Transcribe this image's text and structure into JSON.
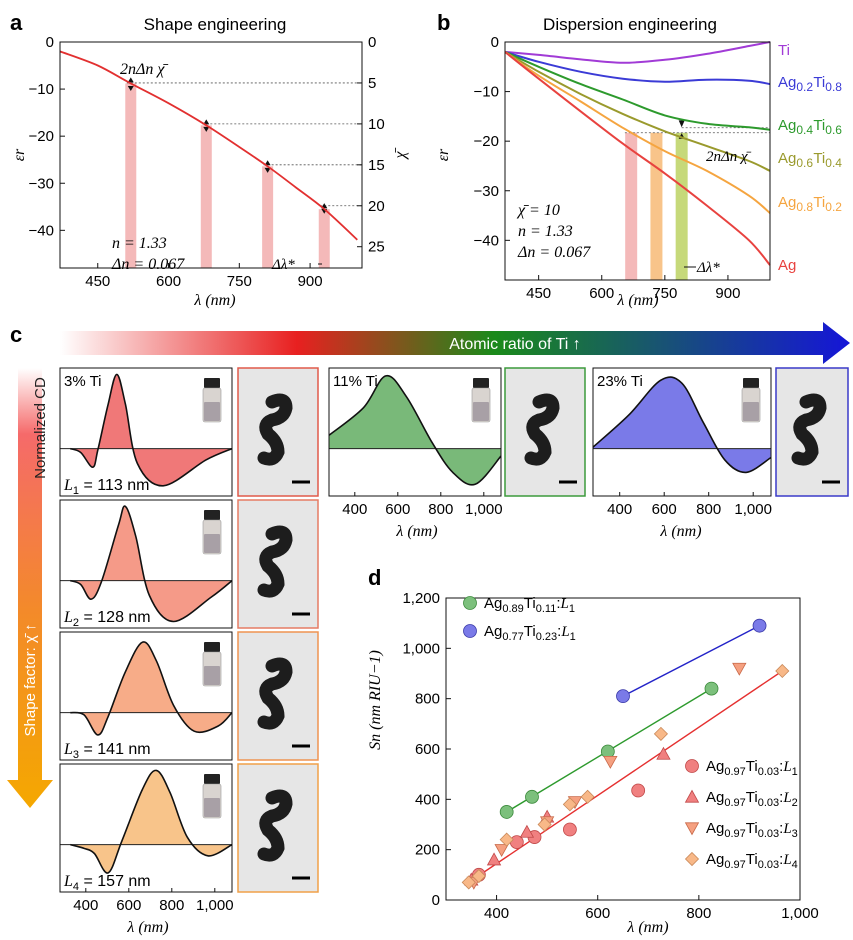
{
  "panel_letters": [
    "a",
    "b",
    "c",
    "d"
  ],
  "chart_data": [
    {
      "id": "a",
      "type": "line",
      "title": "Shape engineering",
      "xlabel": "λ (nm)",
      "ylabel": "εr",
      "y2label": "χ̄",
      "xlim": [
        370,
        1010
      ],
      "ylim": [
        -48,
        0
      ],
      "y2lim": [
        0,
        27.6
      ],
      "xticks": [
        "450",
        "600",
        "750",
        "900"
      ],
      "yticks": [
        "0",
        "−10",
        "−20",
        "−30",
        "−40"
      ],
      "y2ticks": [
        "0",
        "5",
        "10",
        "15",
        "20",
        "25"
      ],
      "curve": {
        "x": [
          370,
          450,
          520,
          600,
          680,
          750,
          810,
          870,
          930,
          1000
        ],
        "y": [
          -2,
          -5,
          -8.8,
          -13,
          -17.7,
          -22.3,
          -26.4,
          -30.9,
          -35.5,
          -42
        ]
      },
      "bars_x": [
        520,
        680,
        810,
        930
      ],
      "chi_levels": [
        5,
        10,
        15,
        20
      ],
      "bar_color": "#f4b9b9",
      "annotations": {
        "top": "2nΔn χ̄",
        "n": "n = 1.33",
        "dn": "Δn = 0.067",
        "dl": "Δλ*"
      }
    },
    {
      "id": "b",
      "type": "line",
      "title": "Dispersion engineering",
      "xlabel": "λ (nm)",
      "ylabel": "εr",
      "xlim": [
        370,
        1000
      ],
      "ylim": [
        -48,
        0
      ],
      "xticks": [
        "450",
        "600",
        "750",
        "900"
      ],
      "yticks": [
        "0",
        "−10",
        "−20",
        "−30",
        "−40"
      ],
      "series": [
        {
          "name": "Ti",
          "color": "#a13bd6",
          "x": [
            370,
            450,
            550,
            650,
            750,
            850,
            950,
            1000
          ],
          "y": [
            -2,
            -2.6,
            -3.5,
            -4.2,
            -3.6,
            -2.4,
            -0.8,
            0
          ]
        },
        {
          "name": "Ag0.2Ti0.8",
          "color": "#3b3bd6",
          "x": [
            370,
            450,
            550,
            650,
            750,
            850,
            950,
            1000
          ],
          "y": [
            -2,
            -4,
            -6,
            -7.4,
            -8,
            -7.6,
            -7.8,
            -8.5
          ]
        },
        {
          "name": "Ag0.4Ti0.6",
          "color": "#2d9a2d",
          "x": [
            370,
            450,
            550,
            650,
            750,
            850,
            950,
            1000
          ],
          "y": [
            -2,
            -5,
            -8.5,
            -11.6,
            -14.8,
            -16.5,
            -17.2,
            -17.7
          ]
        },
        {
          "name": "Ag0.6Ti0.4",
          "color": "#9a9a2d",
          "x": [
            370,
            450,
            550,
            650,
            750,
            850,
            950,
            1000
          ],
          "y": [
            -2,
            -6,
            -10.5,
            -14.5,
            -18,
            -21,
            -24,
            -26
          ]
        },
        {
          "name": "Ag0.8Ti0.2",
          "color": "#f5a540",
          "x": [
            370,
            450,
            550,
            650,
            750,
            850,
            950,
            1000
          ],
          "y": [
            -2,
            -6.8,
            -12,
            -17.3,
            -22,
            -26,
            -31,
            -34.5
          ]
        },
        {
          "name": "Ag",
          "color": "#e8423f",
          "x": [
            370,
            450,
            550,
            650,
            750,
            850,
            950,
            1000
          ],
          "y": [
            -2,
            -7.4,
            -14,
            -20.5,
            -26.5,
            -33,
            -40,
            -45
          ]
        }
      ],
      "bars": [
        {
          "x": 670,
          "color": "#f4b9b9"
        },
        {
          "x": 730,
          "color": "#f8c48a"
        },
        {
          "x": 790,
          "color": "#c6d97a"
        }
      ],
      "annotations": {
        "chi": "χ̄ = 10",
        "n": "n = 1.33",
        "dn": "Δn = 0.067",
        "top": "2nΔn χ̄",
        "dl": "Δλ*"
      }
    },
    {
      "id": "c",
      "type": "area",
      "header": "Atomic ratio of Ti ↑",
      "ylabel": "Normalized CD",
      "side_label": "Shape factor: χ̄ ↑",
      "xlabel": "λ (nm)",
      "xticks": [
        "400",
        "600",
        "800",
        "1,000"
      ],
      "xlim": [
        280,
        1080
      ],
      "panels": [
        {
          "label": "3% Ti",
          "length": "L1 = 113 nm",
          "color": "#f07878",
          "frame": "#e05a4a",
          "peak": 500
        },
        {
          "label": "11% Ti",
          "color": "#79b979",
          "frame": "#3c9a3c",
          "peak": 620
        },
        {
          "label": "23% Ti",
          "color": "#7a7ae8",
          "frame": "#3a3ac8",
          "peak": 680
        },
        {
          "length": "L2 = 128 nm",
          "color": "#f59a88",
          "frame": "#e57b63",
          "peak": 540
        },
        {
          "length": "L3 = 141 nm",
          "color": "#f7ac88",
          "frame": "#ef9350",
          "peak": 640
        },
        {
          "length": "L4 = 157 nm",
          "color": "#f8c48a",
          "frame": "#f0a048",
          "peak": 720
        }
      ]
    },
    {
      "id": "d",
      "type": "scatter",
      "xlabel": "λ (nm)",
      "ylabel": "Sn (nm RIU−1)",
      "xlim": [
        300,
        1000
      ],
      "ylim": [
        0,
        1200
      ],
      "xticks": [
        "400",
        "600",
        "800",
        "1,000"
      ],
      "yticks": [
        "0",
        "200",
        "400",
        "600",
        "800",
        "1,000",
        "1,200"
      ],
      "series": [
        {
          "name": "Ag0.89Ti0.11:L1",
          "marker": "circle",
          "color": "#7cc07c",
          "edge": "#3c8a3c",
          "x": [
            420,
            470,
            620,
            825
          ],
          "y": [
            350,
            410,
            590,
            840
          ],
          "fit": [
            [
              420,
              350
            ],
            [
              825,
              840
            ]
          ],
          "fit_color": "#2d9a2d"
        },
        {
          "name": "Ag0.77Ti0.23:L1",
          "marker": "circle",
          "color": "#7a7ae8",
          "edge": "#3a3aa8",
          "x": [
            650,
            920
          ],
          "y": [
            810,
            1090
          ],
          "fit": [
            [
              650,
              810
            ],
            [
              920,
              1090
            ]
          ],
          "fit_color": "#2323c8"
        },
        {
          "name": "Ag0.97Ti0.03:L1",
          "marker": "circle",
          "color": "#f08080",
          "edge": "#c04848",
          "x": [
            365,
            440,
            475,
            545,
            680
          ],
          "y": [
            100,
            230,
            250,
            280,
            435
          ]
        },
        {
          "name": "Ag0.97Ti0.03:L2",
          "marker": "triangle-up",
          "color": "#f08080",
          "edge": "#c04848",
          "x": [
            350,
            395,
            460,
            500,
            730
          ],
          "y": [
            80,
            160,
            270,
            330,
            580
          ]
        },
        {
          "name": "Ag0.97Ti0.03:L3",
          "marker": "triangle-down",
          "color": "#f5a080",
          "edge": "#c86848",
          "x": [
            355,
            410,
            500,
            555,
            625,
            880
          ],
          "y": [
            70,
            200,
            310,
            390,
            550,
            920
          ]
        },
        {
          "name": "Ag0.97Ti0.03:L4",
          "marker": "diamond",
          "color": "#f8b888",
          "edge": "#c88858",
          "x": [
            345,
            365,
            420,
            495,
            545,
            580,
            725,
            965
          ],
          "y": [
            70,
            95,
            240,
            300,
            380,
            410,
            660,
            910
          ]
        }
      ],
      "fit_red": [
        [
          345,
          70
        ],
        [
          965,
          910
        ]
      ],
      "fit_red_color": "#e53030"
    }
  ]
}
